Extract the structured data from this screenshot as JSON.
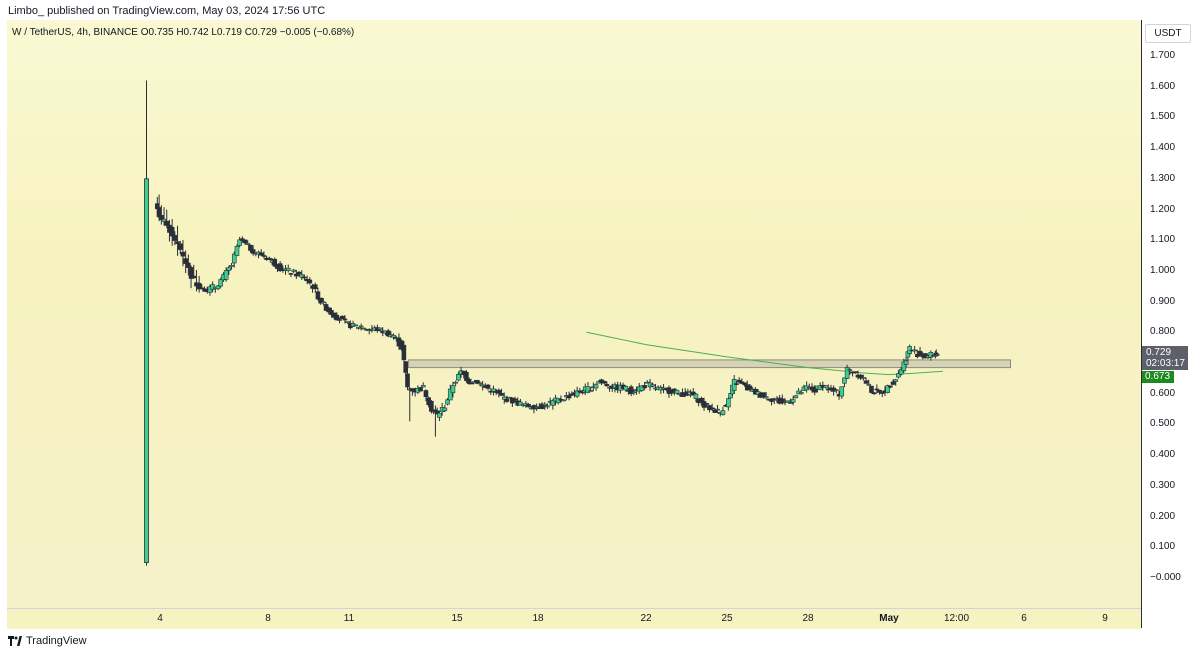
{
  "header": {
    "publisher_line": "Limbo_ published on TradingView.com, May 03, 2024 17:56 UTC"
  },
  "legend": {
    "symbol": "W / TetherUS, 4h, BINANCE",
    "ohlc": "O0.735  H0.742  L0.719  C0.729  −0.005 (−0.68%)"
  },
  "price_axis": {
    "currency": "USDT",
    "last_price": "0.729",
    "countdown": "02:03:17",
    "ma_value": "0.673"
  },
  "footer": {
    "brand": "TradingView",
    "logo_icon": "tradingview-logo-icon"
  },
  "colors": {
    "up": "#3ecf8e",
    "down": "#2a2e39",
    "wick": "#2a2e39",
    "ma_line": "#4caf50",
    "zone_fill": "#d6d3b5",
    "zone_stroke": "#8a8a80"
  },
  "chart_data": {
    "type": "candlestick",
    "title": "W / TetherUS, 4h, BINANCE",
    "ylim": [
      -0.05,
      1.8
    ],
    "y_ticks": [
      "1.700",
      "1.600",
      "1.500",
      "1.400",
      "1.300",
      "1.200",
      "1.100",
      "1.000",
      "0.900",
      "0.800",
      "0.700",
      "0.600",
      "0.500",
      "0.400",
      "0.300",
      "0.200",
      "0.100",
      "−0.000"
    ],
    "x_ticks": [
      {
        "label": "4",
        "day": 4.0
      },
      {
        "label": "8",
        "day": 8.0
      },
      {
        "label": "11",
        "day": 11.0
      },
      {
        "label": "15",
        "day": 15.0
      },
      {
        "label": "18",
        "day": 18.0
      },
      {
        "label": "22",
        "day": 22.0
      },
      {
        "label": "25",
        "day": 25.0
      },
      {
        "label": "28",
        "day": 28.0
      },
      {
        "label": "May",
        "day": 31.0,
        "bold": true
      },
      {
        "label": "12:00",
        "day": 33.5
      },
      {
        "label": "6",
        "day": 36.0
      },
      {
        "label": "9",
        "day": 39.0
      }
    ],
    "price_path": [
      [
        3.5,
        0.05
      ],
      [
        3.6,
        1.4
      ],
      [
        3.8,
        1.25
      ],
      [
        4.0,
        1.18
      ],
      [
        4.3,
        1.15
      ],
      [
        4.6,
        1.1
      ],
      [
        4.9,
        1.05
      ],
      [
        5.2,
        0.98
      ],
      [
        5.5,
        0.95
      ],
      [
        5.8,
        0.94
      ],
      [
        6.1,
        0.95
      ],
      [
        6.4,
        0.98
      ],
      [
        6.7,
        1.02
      ],
      [
        7.0,
        1.1
      ],
      [
        7.3,
        1.08
      ],
      [
        7.6,
        1.06
      ],
      [
        7.9,
        1.05
      ],
      [
        8.2,
        1.03
      ],
      [
        8.5,
        1.01
      ],
      [
        8.8,
        1.0
      ],
      [
        9.1,
        0.99
      ],
      [
        9.4,
        0.98
      ],
      [
        9.7,
        0.95
      ],
      [
        10.0,
        0.9
      ],
      [
        10.3,
        0.87
      ],
      [
        10.6,
        0.85
      ],
      [
        10.9,
        0.83
      ],
      [
        11.2,
        0.82
      ],
      [
        11.5,
        0.82
      ],
      [
        11.8,
        0.81
      ],
      [
        12.1,
        0.81
      ],
      [
        12.4,
        0.8
      ],
      [
        12.7,
        0.79
      ],
      [
        13.0,
        0.75
      ],
      [
        13.2,
        0.62
      ],
      [
        13.5,
        0.61
      ],
      [
        13.8,
        0.62
      ],
      [
        14.1,
        0.55
      ],
      [
        14.3,
        0.53
      ],
      [
        14.6,
        0.56
      ],
      [
        14.9,
        0.63
      ],
      [
        15.2,
        0.67
      ],
      [
        15.5,
        0.64
      ],
      [
        15.8,
        0.64
      ],
      [
        16.1,
        0.62
      ],
      [
        16.4,
        0.61
      ],
      [
        16.7,
        0.59
      ],
      [
        17.0,
        0.58
      ],
      [
        17.3,
        0.57
      ],
      [
        17.6,
        0.56
      ],
      [
        17.9,
        0.56
      ],
      [
        18.2,
        0.56
      ],
      [
        18.5,
        0.57
      ],
      [
        18.8,
        0.58
      ],
      [
        19.1,
        0.59
      ],
      [
        19.4,
        0.6
      ],
      [
        19.7,
        0.61
      ],
      [
        20.0,
        0.62
      ],
      [
        20.3,
        0.64
      ],
      [
        20.6,
        0.63
      ],
      [
        20.9,
        0.62
      ],
      [
        21.2,
        0.62
      ],
      [
        21.5,
        0.61
      ],
      [
        21.8,
        0.62
      ],
      [
        22.1,
        0.63
      ],
      [
        22.4,
        0.62
      ],
      [
        22.7,
        0.61
      ],
      [
        23.0,
        0.61
      ],
      [
        23.3,
        0.6
      ],
      [
        23.6,
        0.6
      ],
      [
        23.9,
        0.59
      ],
      [
        24.2,
        0.56
      ],
      [
        24.5,
        0.55
      ],
      [
        24.8,
        0.54
      ],
      [
        25.1,
        0.58
      ],
      [
        25.3,
        0.64
      ],
      [
        25.6,
        0.63
      ],
      [
        25.9,
        0.61
      ],
      [
        26.2,
        0.6
      ],
      [
        26.5,
        0.59
      ],
      [
        26.8,
        0.58
      ],
      [
        27.1,
        0.57
      ],
      [
        27.4,
        0.58
      ],
      [
        27.7,
        0.6
      ],
      [
        28.0,
        0.62
      ],
      [
        28.3,
        0.61
      ],
      [
        28.6,
        0.63
      ],
      [
        28.9,
        0.61
      ],
      [
        29.2,
        0.6
      ],
      [
        29.5,
        0.68
      ],
      [
        29.8,
        0.67
      ],
      [
        30.1,
        0.65
      ],
      [
        30.4,
        0.61
      ],
      [
        30.7,
        0.6
      ],
      [
        31.0,
        0.62
      ],
      [
        31.3,
        0.65
      ],
      [
        31.6,
        0.7
      ],
      [
        31.8,
        0.75
      ],
      [
        32.1,
        0.73
      ],
      [
        32.4,
        0.72
      ],
      [
        32.7,
        0.73
      ],
      [
        32.8,
        0.729
      ]
    ],
    "initial_spike": {
      "day": 3.5,
      "open": 0.05,
      "high": 1.62,
      "low": 0.04,
      "close": 1.3
    },
    "resistance_zone": {
      "day_start": 13.2,
      "day_end": 35.5,
      "price_low": 0.685,
      "price_high": 0.71
    },
    "moving_average": [
      [
        19.8,
        0.8
      ],
      [
        22.0,
        0.76
      ],
      [
        25.0,
        0.72
      ],
      [
        28.0,
        0.685
      ],
      [
        30.0,
        0.668
      ],
      [
        31.0,
        0.662
      ],
      [
        32.0,
        0.667
      ],
      [
        33.0,
        0.673
      ]
    ]
  }
}
